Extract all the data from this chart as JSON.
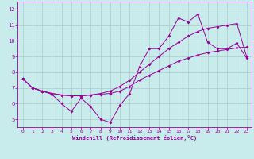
{
  "xlabel": "Windchill (Refroidissement éolien,°C)",
  "background_color": "#c8ecec",
  "line_color": "#990099",
  "grid_color": "#b0c8c8",
  "xlim": [
    -0.5,
    23.5
  ],
  "ylim": [
    4.5,
    12.5
  ],
  "xticks": [
    0,
    1,
    2,
    3,
    4,
    5,
    6,
    7,
    8,
    9,
    10,
    11,
    12,
    13,
    14,
    15,
    16,
    17,
    18,
    19,
    20,
    21,
    22,
    23
  ],
  "yticks": [
    5,
    6,
    7,
    8,
    9,
    10,
    11,
    12
  ],
  "line1_x": [
    0,
    1,
    2,
    3,
    4,
    5,
    6,
    7,
    8,
    9,
    10,
    11,
    12,
    13,
    14,
    15,
    16,
    17,
    18,
    19,
    20,
    21,
    22,
    23
  ],
  "line1_y": [
    7.6,
    7.0,
    6.8,
    6.6,
    6.0,
    5.5,
    6.35,
    5.8,
    5.0,
    4.8,
    5.9,
    6.65,
    8.35,
    9.5,
    9.5,
    10.3,
    11.45,
    11.2,
    11.7,
    9.9,
    9.5,
    9.5,
    9.85,
    8.9
  ],
  "line2_x": [
    0,
    1,
    2,
    3,
    4,
    5,
    6,
    7,
    8,
    9,
    10,
    11,
    12,
    13,
    14,
    15,
    16,
    17,
    18,
    19,
    20,
    21,
    22,
    23
  ],
  "line2_y": [
    7.6,
    7.0,
    6.8,
    6.65,
    6.55,
    6.5,
    6.5,
    6.55,
    6.6,
    6.65,
    6.8,
    7.1,
    7.5,
    7.8,
    8.1,
    8.4,
    8.7,
    8.9,
    9.1,
    9.25,
    9.35,
    9.45,
    9.55,
    9.6
  ],
  "line3_x": [
    0,
    1,
    2,
    3,
    4,
    5,
    6,
    7,
    8,
    9,
    10,
    11,
    12,
    13,
    14,
    15,
    16,
    17,
    18,
    19,
    20,
    21,
    22,
    23
  ],
  "line3_y": [
    7.6,
    7.0,
    6.8,
    6.65,
    6.55,
    6.5,
    6.5,
    6.55,
    6.65,
    6.8,
    7.1,
    7.5,
    8.0,
    8.5,
    9.0,
    9.5,
    9.9,
    10.3,
    10.6,
    10.8,
    10.9,
    11.0,
    11.1,
    9.0
  ]
}
